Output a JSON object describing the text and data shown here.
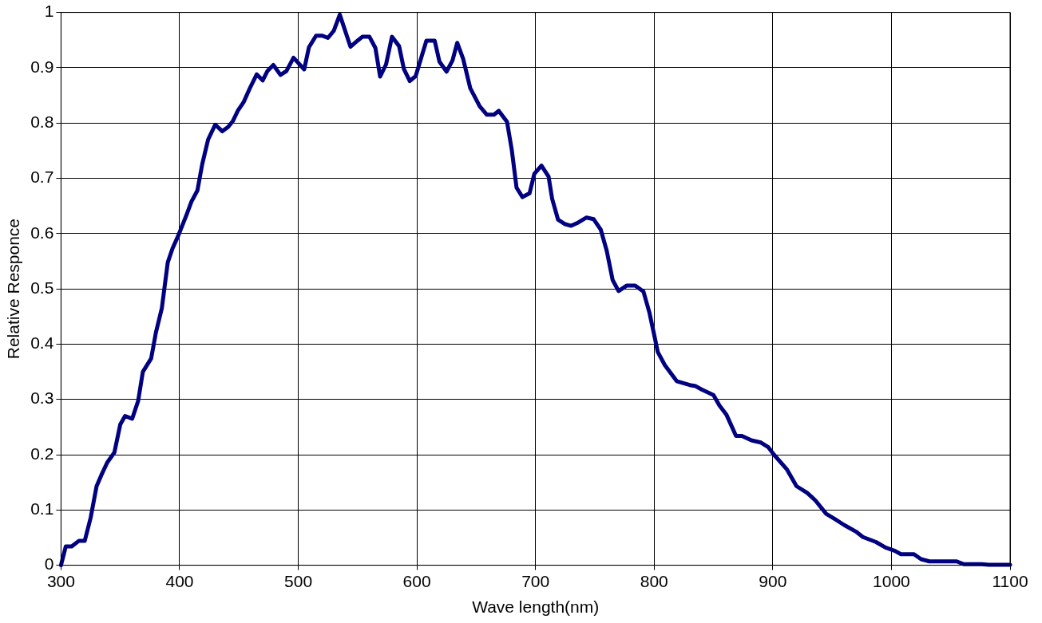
{
  "chart_data": {
    "type": "line",
    "xlabel": "Wave length(nm)",
    "ylabel": "Relative Responce",
    "x": [
      300,
      304,
      309,
      315,
      320,
      325,
      330,
      334,
      339,
      345,
      350,
      354,
      360,
      365,
      369,
      376,
      380,
      385,
      390,
      394,
      399,
      406,
      410,
      415,
      419,
      424,
      430,
      436,
      441,
      445,
      449,
      454,
      459,
      465,
      470,
      474,
      479,
      485,
      490,
      496,
      505,
      509,
      515,
      520,
      525,
      530,
      535,
      544,
      550,
      554,
      560,
      565,
      569,
      574,
      579,
      585,
      589,
      594,
      599,
      608,
      615,
      619,
      625,
      630,
      634,
      639,
      645,
      653,
      659,
      665,
      669,
      676,
      680,
      684,
      689,
      695,
      699,
      705,
      711,
      714,
      719,
      725,
      730,
      736,
      743,
      749,
      755,
      760,
      765,
      770,
      777,
      784,
      791,
      796,
      800,
      803,
      809,
      819,
      830,
      835,
      840,
      850,
      855,
      861,
      869,
      874,
      882,
      890,
      896,
      901,
      912,
      920,
      929,
      936,
      945,
      952,
      960,
      970,
      976,
      987,
      995,
      1003,
      1008,
      1019,
      1025,
      1032,
      1055,
      1061,
      1076,
      1082,
      1100
    ],
    "series": [
      {
        "color": "#000080",
        "values": [
          0,
          0.034,
          0.034,
          0.044,
          0.044,
          0.086,
          0.143,
          0.163,
          0.186,
          0.204,
          0.255,
          0.27,
          0.265,
          0.297,
          0.35,
          0.374,
          0.421,
          0.465,
          0.548,
          0.573,
          0.597,
          0.635,
          0.658,
          0.678,
          0.725,
          0.77,
          0.797,
          0.785,
          0.793,
          0.804,
          0.822,
          0.838,
          0.862,
          0.888,
          0.877,
          0.894,
          0.905,
          0.887,
          0.894,
          0.918,
          0.897,
          0.937,
          0.958,
          0.958,
          0.954,
          0.967,
          0.996,
          0.938,
          0.949,
          0.956,
          0.956,
          0.936,
          0.884,
          0.906,
          0.956,
          0.939,
          0.898,
          0.876,
          0.885,
          0.949,
          0.949,
          0.911,
          0.893,
          0.913,
          0.945,
          0.916,
          0.863,
          0.83,
          0.815,
          0.815,
          0.822,
          0.802,
          0.751,
          0.683,
          0.666,
          0.673,
          0.708,
          0.723,
          0.703,
          0.663,
          0.625,
          0.617,
          0.614,
          0.62,
          0.629,
          0.626,
          0.607,
          0.569,
          0.516,
          0.496,
          0.506,
          0.506,
          0.495,
          0.457,
          0.417,
          0.386,
          0.362,
          0.333,
          0.326,
          0.324,
          0.318,
          0.308,
          0.289,
          0.272,
          0.234,
          0.234,
          0.226,
          0.222,
          0.214,
          0.2,
          0.173,
          0.143,
          0.131,
          0.117,
          0.093,
          0.084,
          0.073,
          0.061,
          0.051,
          0.042,
          0.032,
          0.026,
          0.02,
          0.02,
          0.011,
          0.007,
          0.007,
          0.002,
          0.002,
          0.001,
          0.001
        ]
      }
    ],
    "xlim": [
      300,
      1100
    ],
    "xticks": [
      300,
      400,
      500,
      600,
      700,
      800,
      900,
      1000,
      1100
    ],
    "ylim": [
      0,
      1
    ],
    "yticks": [
      0,
      0.1,
      0.2,
      0.3,
      0.4,
      0.5,
      0.6,
      0.7,
      0.8,
      0.9,
      1
    ],
    "grid": true,
    "legend": false,
    "marker": "none",
    "line_style": "solid"
  }
}
